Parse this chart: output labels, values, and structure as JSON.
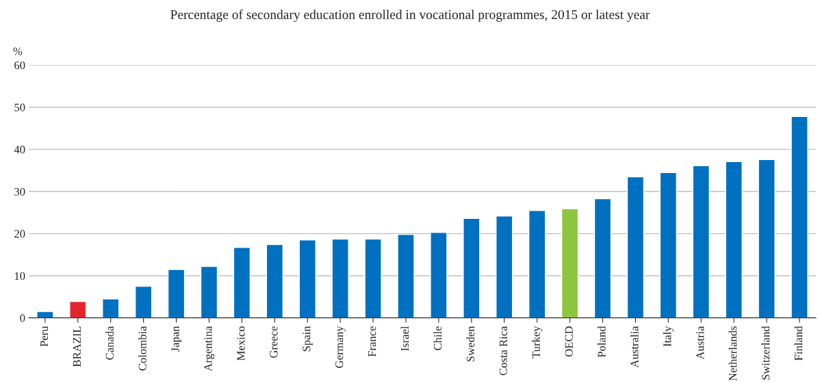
{
  "chart_data": {
    "type": "bar",
    "title": "Percentage of secondary education enrolled in vocational programmes, 2015 or latest year",
    "ylabel": "%",
    "categories": [
      "Peru",
      "BRAZIL",
      "Canada",
      "Colombia",
      "Japan",
      "Argentina",
      "Mexico",
      "Greece",
      "Spain",
      "Germany",
      "France",
      "Israel",
      "Chile",
      "Sweden",
      "Costa Rica",
      "Turkey",
      "OECD",
      "Poland",
      "Australia",
      "Italy",
      "Austria",
      "Netherlands",
      "Switzerland",
      "Finland"
    ],
    "values": [
      1.5,
      3.9,
      4.5,
      7.5,
      11.5,
      12.2,
      16.7,
      17.4,
      18.5,
      18.7,
      18.7,
      19.8,
      20.3,
      23.6,
      24.2,
      25.5,
      25.9,
      28.3,
      33.5,
      34.5,
      36.1,
      37.1,
      37.6,
      47.8
    ],
    "colors": [
      "#0070c0",
      "#e3262d",
      "#0070c0",
      "#0070c0",
      "#0070c0",
      "#0070c0",
      "#0070c0",
      "#0070c0",
      "#0070c0",
      "#0070c0",
      "#0070c0",
      "#0070c0",
      "#0070c0",
      "#0070c0",
      "#0070c0",
      "#0070c0",
      "#8cc63f",
      "#0070c0",
      "#0070c0",
      "#0070c0",
      "#0070c0",
      "#0070c0",
      "#0070c0",
      "#0070c0"
    ],
    "ylim": [
      0,
      60
    ],
    "yticks": [
      0,
      10,
      20,
      30,
      40,
      50,
      60
    ],
    "grid": "y"
  }
}
